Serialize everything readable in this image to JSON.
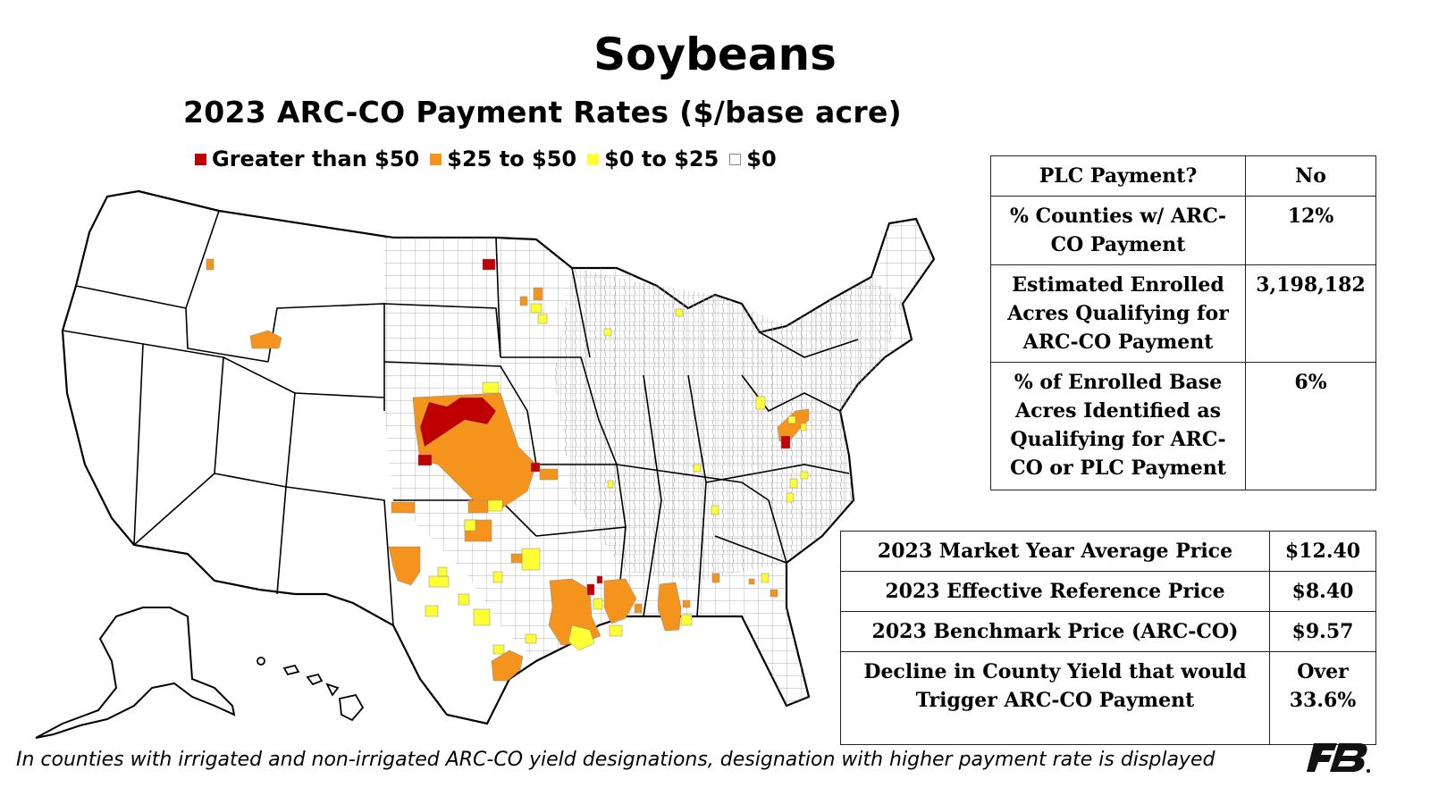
{
  "title": "Soybeans",
  "subtitle": "2023 ARC-CO Payment Rates ($/base acre)",
  "legend": [
    {
      "label": "Greater than $50",
      "color": "#c00000"
    },
    {
      "label": "$25 to $50",
      "color": "#f4941c"
    },
    {
      "label": "$0 to $25",
      "color": "#ffff33"
    },
    {
      "label": "$0",
      "color": "#ffffff"
    }
  ],
  "plc_table": [
    {
      "label": "PLC Payment?",
      "value": "No"
    },
    {
      "label": "% Counties w/ ARC-CO Payment",
      "value": "12%"
    },
    {
      "label": "Estimated Enrolled Acres Qualifying for ARC-CO Payment",
      "value": "3,198,182"
    },
    {
      "label": "% of Enrolled Base Acres Identified as Qualifying for ARC-CO or PLC Payment",
      "value": "6%"
    }
  ],
  "price_table": [
    {
      "label": "2023 Market Year Average Price",
      "value": "$12.40"
    },
    {
      "label": "2023 Effective Reference Price",
      "value": "$8.40"
    },
    {
      "label": "2023 Benchmark Price (ARC-CO)",
      "value": "$9.57"
    },
    {
      "label": "Decline in County Yield that would Trigger ARC-CO Payment",
      "value": "Over 33.6%"
    }
  ],
  "footnote": "In counties with irrigated and non-irrigated ARC-CO yield designations, designation with higher payment rate is displayed",
  "logo": "farm-bureau-logo",
  "colors": {
    "red": "#c00000",
    "orange": "#f4941c",
    "yellow": "#ffff33",
    "county_border": "#9a9a9a",
    "state_border": "#000000"
  }
}
